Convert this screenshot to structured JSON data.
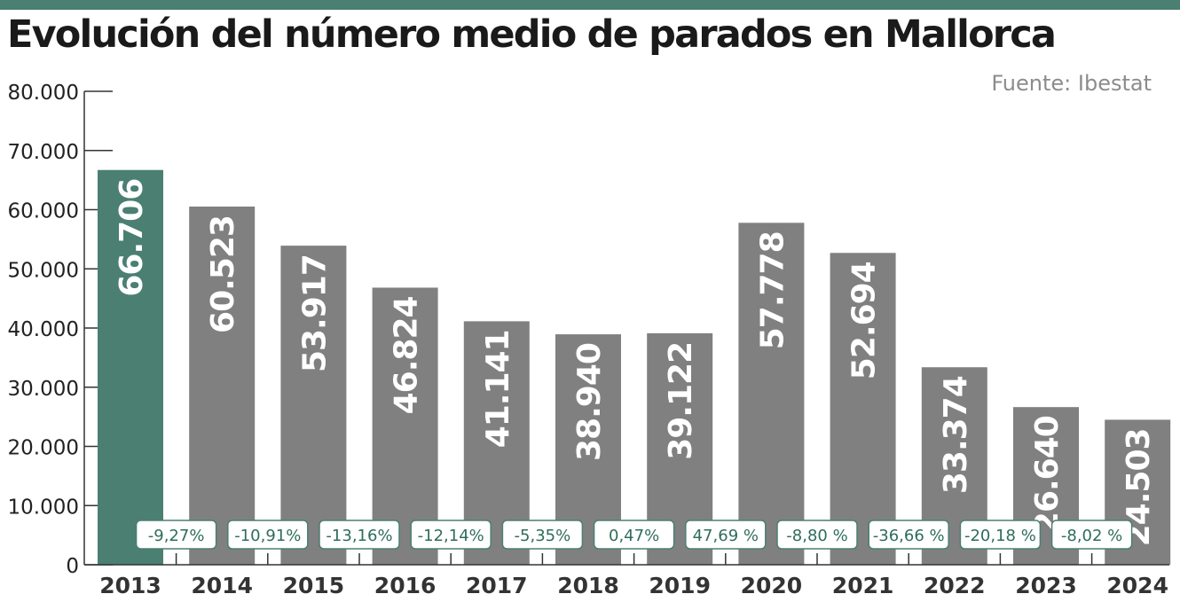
{
  "header": {
    "title": "Evolución del número medio de parados en Mallorca",
    "source": "Fuente: Ibestat"
  },
  "colors": {
    "accent": "#4a7f72",
    "bar": "#808080",
    "value_label": "#ffffff",
    "tick_label": "#222222",
    "source": "#8c8c8c",
    "badge_text": "#2f6d5c",
    "badge_border": "#4a7f72"
  },
  "chart_data": {
    "type": "bar",
    "title": "Evolución del número medio de parados en Mallorca",
    "xlabel": "",
    "ylabel": "",
    "categories": [
      "2013",
      "2014",
      "2015",
      "2016",
      "2017",
      "2018",
      "2019",
      "2020",
      "2021",
      "2022",
      "2023",
      "2024"
    ],
    "values": [
      66706,
      60523,
      53917,
      46824,
      41141,
      38940,
      39122,
      57778,
      52694,
      33374,
      26640,
      24503
    ],
    "value_labels": [
      "66.706",
      "60.523",
      "53.917",
      "46.824",
      "41.141",
      "38.940",
      "39.122",
      "57.778",
      "52.694",
      "33.374",
      "26.640",
      "24.503"
    ],
    "highlight_index": 0,
    "ylim": [
      0,
      80000
    ],
    "yticks": [
      0,
      10000,
      20000,
      30000,
      40000,
      50000,
      60000,
      70000,
      80000
    ],
    "ytick_labels": [
      "0",
      "10.000",
      "20.000",
      "30.000",
      "40.000",
      "50.000",
      "60.000",
      "70.000",
      "80.000"
    ],
    "changes": [
      "-9,27%",
      "-10,91%",
      "-13,16%",
      "-12,14%",
      "-5,35%",
      "0,47%",
      "47,69 %",
      "-8,80 %",
      "-36,66 %",
      "-20,18 %",
      "-8,02 %"
    ],
    "grid": false,
    "legend": "none"
  }
}
